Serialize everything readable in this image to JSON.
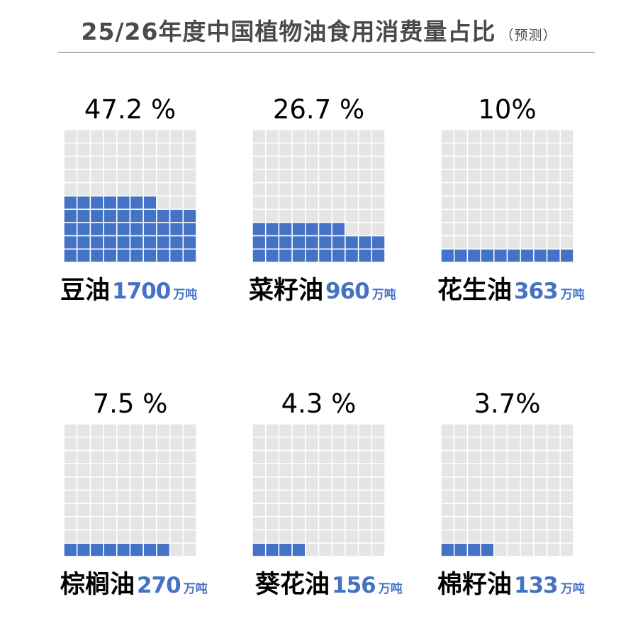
{
  "title": {
    "main": "25/26年度中国植物油食用消费量占比",
    "sub": "（预测）"
  },
  "chart_data": {
    "type": "waffle",
    "title": "25/26年度中国植物油食用消费量占比（预测）",
    "colors": {
      "filled": "#4472c4",
      "empty": "#e5e5e5"
    },
    "series": [
      {
        "name": "豆油",
        "share_label": "47.2 %",
        "share": 47.2,
        "value": 1700,
        "value_label": "1700",
        "unit": "万吨"
      },
      {
        "name": "菜籽油",
        "share_label": "26.7 %",
        "share": 26.7,
        "value": 960,
        "value_label": "960",
        "unit": "万吨"
      },
      {
        "name": "花生油",
        "share_label": "10%",
        "share": 10,
        "value": 363,
        "value_label": "363",
        "unit": "万吨"
      },
      {
        "name": "棕榈油",
        "share_label": "7.5 %",
        "share": 7.5,
        "value": 270,
        "value_label": "270",
        "unit": "万吨"
      },
      {
        "name": "葵花油",
        "share_label": "4.3 %",
        "share": 4.3,
        "value": 156,
        "value_label": "156",
        "unit": "万吨"
      },
      {
        "name": "棉籽油",
        "share_label": "3.7%",
        "share": 3.7,
        "value": 133,
        "value_label": "133",
        "unit": "万吨"
      }
    ]
  }
}
